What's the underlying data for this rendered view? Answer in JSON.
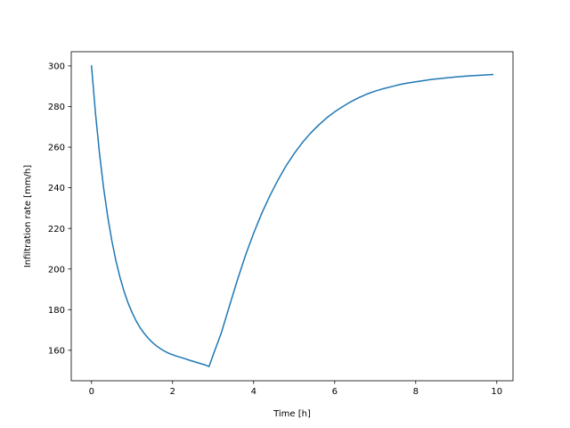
{
  "chart_data": {
    "type": "line",
    "title": "",
    "xlabel": "Time [h]",
    "ylabel": "Infiltration rate [mm/h]",
    "xlim": [
      -0.5,
      10.4
    ],
    "ylim": [
      145,
      307
    ],
    "xticks": [
      0,
      2,
      4,
      6,
      8,
      10
    ],
    "yticks": [
      160,
      180,
      200,
      220,
      240,
      260,
      280,
      300
    ],
    "grid": false,
    "legend": "none",
    "series": [
      {
        "color": "#1f77b4",
        "x": [
          0,
          0.1,
          0.2,
          0.3,
          0.4,
          0.5,
          0.6,
          0.7,
          0.8,
          0.9,
          1.0,
          1.1,
          1.2,
          1.3,
          1.4,
          1.5,
          1.6,
          1.7,
          1.8,
          1.9,
          2.0,
          2.1,
          2.2,
          2.3,
          2.4,
          2.5,
          2.6,
          2.7,
          2.8,
          2.9,
          3.0,
          3.2,
          3.4,
          3.6,
          3.8,
          4.0,
          4.2,
          4.4,
          4.6,
          4.8,
          5.0,
          5.2,
          5.4,
          5.6,
          5.8,
          6.0,
          6.2,
          6.4,
          6.6,
          6.8,
          7.0,
          7.2,
          7.4,
          7.6,
          7.8,
          8.0,
          8.2,
          8.4,
          8.6,
          8.8,
          9.0,
          9.2,
          9.4,
          9.6,
          9.9
        ],
        "y": [
          300,
          276.3,
          256.4,
          239.7,
          225.8,
          214.1,
          204.3,
          196.1,
          189.2,
          183.4,
          178.6,
          174.5,
          171.1,
          168.3,
          165.9,
          163.9,
          162.2,
          160.8,
          159.6,
          158.6,
          157.8,
          157.1,
          156.5,
          155.9,
          155.2,
          154.6,
          154.0,
          153.4,
          152.8,
          152.0,
          157.6,
          168.4,
          181.6,
          194.6,
          206.8,
          217.6,
          227.4,
          236.0,
          243.8,
          250.8,
          256.8,
          262.2,
          266.8,
          270.8,
          274.4,
          277.4,
          280.0,
          282.4,
          284.4,
          286.2,
          287.6,
          288.8,
          289.8,
          290.8,
          291.6,
          292.2,
          292.8,
          293.4,
          293.8,
          294.2,
          294.6,
          294.9,
          295.2,
          295.4,
          295.8
        ]
      }
    ]
  }
}
